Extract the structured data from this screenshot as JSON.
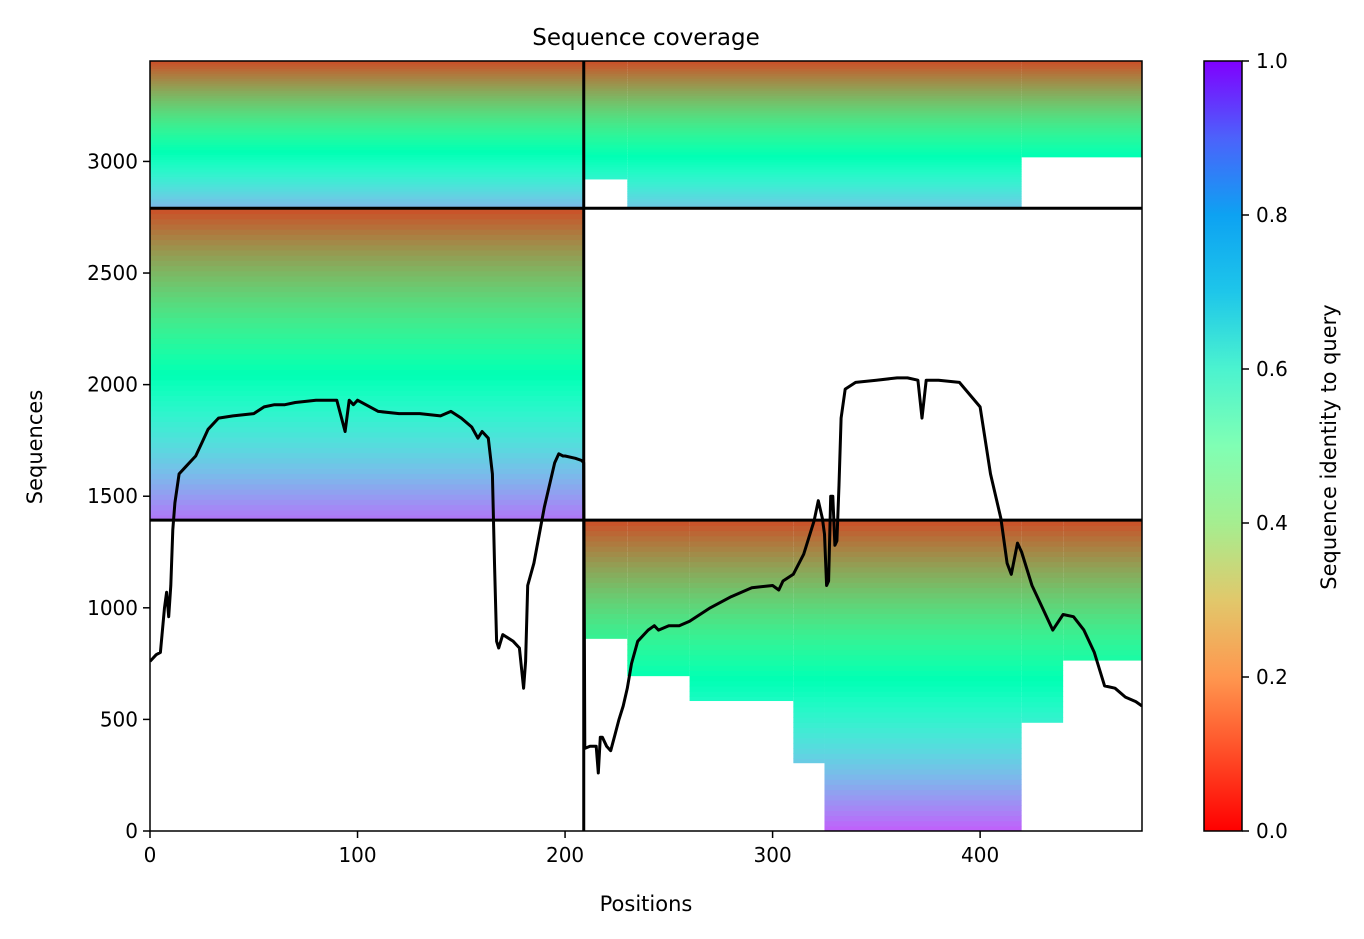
{
  "chart_data": {
    "type": "heatmap",
    "title": "Sequence coverage",
    "xlabel": "Positions",
    "ylabel": "Sequences",
    "xlim": [
      0,
      478
    ],
    "ylim": [
      0,
      3450
    ],
    "x_ticks": [
      0,
      100,
      200,
      300,
      400
    ],
    "y_ticks": [
      0,
      500,
      1000,
      1500,
      2000,
      2500,
      3000
    ],
    "colorbar": {
      "label": "Sequence identity to query",
      "range": [
        0.0,
        1.0
      ],
      "ticks": [
        "0.0",
        "0.2",
        "0.4",
        "0.6",
        "0.8",
        "1.0"
      ],
      "colormap": "rainbow"
    },
    "block_boundaries": {
      "x": 209,
      "y": [
        1393,
        2790
      ]
    },
    "blocks": [
      {
        "x_range": [
          0,
          209
        ],
        "y_range": [
          2790,
          3450
        ],
        "identity_bottom": 0.25,
        "identity_top": 0.9,
        "coverage": [
          [
            0,
            209,
            0.0,
            1.0
          ]
        ]
      },
      {
        "x_range": [
          209,
          478
        ],
        "y_range": [
          2790,
          3450
        ],
        "identity_bottom": 0.28,
        "identity_top": 0.9,
        "coverage": [
          [
            209,
            230,
            0.2,
            1.0
          ],
          [
            230,
            420,
            0.0,
            1.0
          ],
          [
            420,
            478,
            0.35,
            1.0
          ]
        ]
      },
      {
        "x_range": [
          0,
          209
        ],
        "y_range": [
          1393,
          2790
        ],
        "identity_bottom": 0.15,
        "identity_top": 0.9,
        "coverage": [
          [
            0,
            209,
            0.0,
            1.0
          ]
        ]
      },
      {
        "x_range": [
          209,
          478
        ],
        "y_range": [
          0,
          1393
        ],
        "identity_bottom": 0.12,
        "identity_top": 0.9,
        "coverage": [
          [
            209,
            230,
            0.62,
            1.0
          ],
          [
            230,
            260,
            0.5,
            1.0
          ],
          [
            260,
            310,
            0.42,
            1.0
          ],
          [
            310,
            325,
            0.22,
            1.0
          ],
          [
            325,
            420,
            0.0,
            1.0
          ],
          [
            420,
            440,
            0.35,
            1.0
          ],
          [
            440,
            478,
            0.55,
            1.0
          ]
        ]
      }
    ],
    "coverage_line": {
      "x": [
        0,
        3,
        5,
        7,
        8,
        9,
        10,
        11,
        12,
        14,
        17,
        20,
        22,
        25,
        28,
        33,
        40,
        50,
        55,
        60,
        65,
        70,
        80,
        90,
        94,
        96,
        98,
        100,
        110,
        120,
        130,
        140,
        145,
        150,
        155,
        158,
        160,
        163,
        165,
        166,
        167,
        168,
        170,
        175,
        178,
        180,
        181,
        182,
        185,
        190,
        195,
        197,
        199,
        200,
        205,
        208,
        209,
        209.5,
        212,
        215,
        216,
        217,
        218,
        220,
        222,
        224,
        226,
        228,
        230,
        232,
        235,
        240,
        243,
        245,
        250,
        255,
        260,
        270,
        280,
        290,
        300,
        303,
        305,
        310,
        315,
        320,
        322,
        324,
        325,
        326,
        327,
        328,
        329,
        330,
        331,
        332,
        333,
        335,
        340,
        350,
        360,
        365,
        370,
        372,
        374,
        376,
        380,
        390,
        400,
        405,
        410,
        413,
        415,
        418,
        420,
        425,
        430,
        435,
        440,
        445,
        450,
        455,
        460,
        465,
        470,
        475,
        478
      ],
      "y": [
        760,
        790,
        800,
        1000,
        1070,
        960,
        1100,
        1350,
        1470,
        1600,
        1630,
        1660,
        1680,
        1740,
        1800,
        1850,
        1860,
        1870,
        1900,
        1910,
        1910,
        1920,
        1930,
        1930,
        1790,
        1930,
        1910,
        1930,
        1880,
        1870,
        1870,
        1860,
        1880,
        1850,
        1810,
        1760,
        1790,
        1760,
        1600,
        1200,
        850,
        820,
        880,
        850,
        820,
        640,
        760,
        1100,
        1200,
        1450,
        1650,
        1690,
        1680,
        1680,
        1670,
        1660,
        1650,
        370,
        380,
        380,
        260,
        420,
        420,
        380,
        360,
        430,
        500,
        560,
        640,
        750,
        850,
        900,
        920,
        900,
        920,
        920,
        940,
        1000,
        1050,
        1090,
        1100,
        1080,
        1120,
        1150,
        1240,
        1390,
        1480,
        1400,
        1330,
        1100,
        1120,
        1500,
        1500,
        1280,
        1300,
        1550,
        1850,
        1980,
        2010,
        2020,
        2030,
        2030,
        2020,
        1850,
        2020,
        2020,
        2020,
        2010,
        1900,
        1600,
        1400,
        1200,
        1150,
        1290,
        1250,
        1100,
        1000,
        900,
        970,
        960,
        900,
        800,
        650,
        640,
        600,
        580,
        560
      ]
    }
  }
}
